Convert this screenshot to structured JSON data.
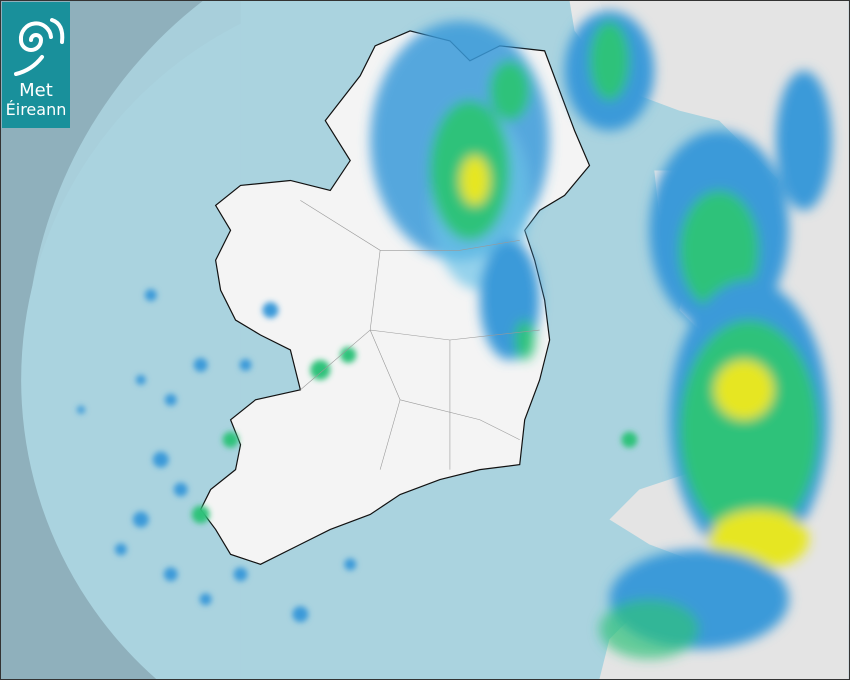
{
  "logo": {
    "line1": "Met",
    "line2": "Éireann"
  },
  "colors": {
    "outside_coverage": "#8fb0bc",
    "radar_coverage": "#aad3df",
    "land": "#f2f2f2",
    "rain_light": "#3a9ad9",
    "rain_moderate": "#2ec27a",
    "rain_heavy": "#e6e620",
    "logo_bg": "#19909b"
  }
}
